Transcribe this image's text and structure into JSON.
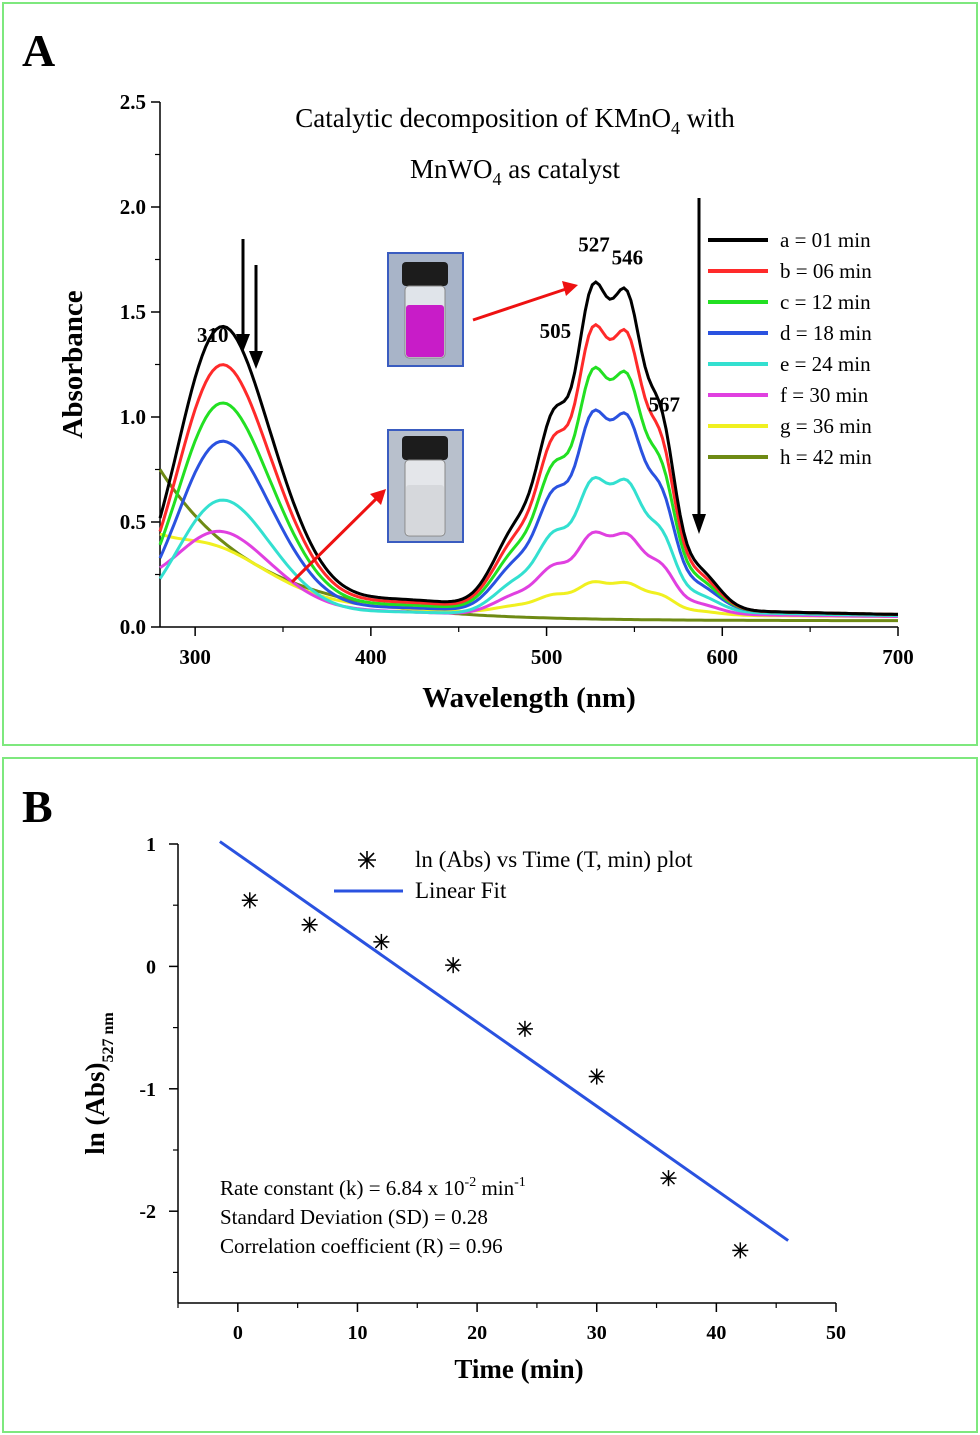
{
  "panel_a": {
    "label": "A",
    "title_line1": "Catalytic decomposition of KMnO",
    "title_line1_sub": "4",
    "title_line1_tail": " with",
    "title_line2": "MnWO",
    "title_line2_sub": "4",
    "title_line2_tail": " as catalyst"
  },
  "panel_b": {
    "label": "B",
    "legend_scatter": "ln (Abs) vs Time (T, min) plot",
    "legend_line": "Linear Fit",
    "rate_text": "Rate constant (k) = 6.84 x 10",
    "rate_exp": "-2",
    "rate_unit": " min",
    "rate_unit_exp": "-1",
    "sd_text": "Standard Deviation (SD) = 0.28",
    "r_text": "Correlation coefficient (R) = 0.96"
  },
  "chart_data": [
    {
      "type": "line",
      "title": "Catalytic decomposition of KMnO4 with MnWO4 as catalyst",
      "xlabel": "Wavelength (nm)",
      "ylabel": "Absorbance",
      "xlim": [
        280,
        700
      ],
      "ylim": [
        0,
        2.5
      ],
      "xticks": [
        300,
        400,
        500,
        600,
        700
      ],
      "yticks": [
        0.0,
        0.5,
        1.0,
        1.5,
        2.0,
        2.5
      ],
      "ytick_labels": [
        "0.0",
        "0.5",
        "1.0",
        "1.5",
        "2.0",
        "2.5"
      ],
      "legend_position": "right",
      "peak_labels": [
        {
          "text": "310",
          "x": 310,
          "y": 1.3
        },
        {
          "text": "505",
          "x": 505,
          "y": 1.32
        },
        {
          "text": "527",
          "x": 527,
          "y": 1.73
        },
        {
          "text": "546",
          "x": 546,
          "y": 1.67
        },
        {
          "text": "567",
          "x": 567,
          "y": 0.97
        }
      ],
      "series": [
        {
          "name": "a = 01 min",
          "color": "#000000",
          "scale": 1.0
        },
        {
          "name": "b = 06 min",
          "color": "#ff2a2a",
          "scale": 0.87
        },
        {
          "name": "c = 12 min",
          "color": "#22e022",
          "scale": 0.74
        },
        {
          "name": "d = 18 min",
          "color": "#2a52e0",
          "scale": 0.61
        },
        {
          "name": "e = 24 min",
          "color": "#33e0d0",
          "scale": 0.41
        },
        {
          "name": "f = 30 min",
          "color": "#e040e0",
          "scale": 0.25
        },
        {
          "name": "g = 36 min",
          "color": "#f0f020",
          "scale": 0.1
        },
        {
          "name": "h = 42 min",
          "color": "#6e8a14",
          "scale": 0.0
        }
      ]
    },
    {
      "type": "scatter",
      "xlabel": "Time (min)",
      "ylabel": "ln (Abs)",
      "ylabel_sub": "527 nm",
      "xlim": [
        -5,
        50
      ],
      "ylim": [
        -2.75,
        1
      ],
      "xticks": [
        0,
        10,
        20,
        30,
        40,
        50
      ],
      "yticks": [
        1,
        0,
        -1,
        -2
      ],
      "x": [
        1,
        6,
        12,
        18,
        24,
        30,
        36,
        42
      ],
      "y": [
        0.54,
        0.34,
        0.2,
        0.01,
        -0.51,
        -0.9,
        -1.73,
        -2.32
      ],
      "fit": {
        "x": [
          -1.5,
          46
        ],
        "y": [
          1.02,
          -2.24
        ]
      }
    }
  ]
}
